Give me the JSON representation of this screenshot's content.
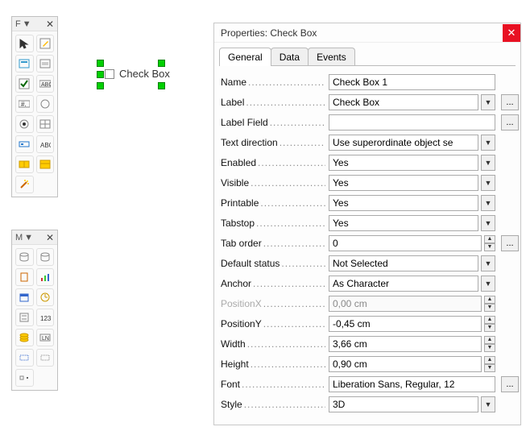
{
  "toolbars": {
    "form_controls": {
      "letter": "F",
      "items": [
        {
          "name": "select-tool",
          "glyph": "cursor",
          "active": false
        },
        {
          "name": "design-mode",
          "glyph": "pencil",
          "active": true
        },
        {
          "name": "form-control-1",
          "glyph": "box1",
          "active": false
        },
        {
          "name": "form-control-2",
          "glyph": "box2",
          "active": false
        },
        {
          "name": "checkbox-tool",
          "glyph": "check",
          "active": true
        },
        {
          "name": "label-tool",
          "glyph": "abc",
          "active": false
        },
        {
          "name": "numeric-tool",
          "glyph": "hash",
          "active": false
        },
        {
          "name": "circle-tool",
          "glyph": "circle",
          "active": false
        },
        {
          "name": "radio-tool",
          "glyph": "radio",
          "active": false
        },
        {
          "name": "grid-tool",
          "glyph": "grid",
          "active": false
        },
        {
          "name": "nav-tool",
          "glyph": "nav",
          "active": false
        },
        {
          "name": "text-tool",
          "glyph": "abc2",
          "active": false
        },
        {
          "name": "group-tool",
          "glyph": "group",
          "active": true
        },
        {
          "name": "table-tool",
          "glyph": "table",
          "active": true
        },
        {
          "name": "wizard-tool",
          "glyph": "wand",
          "active": false
        }
      ]
    },
    "more_controls": {
      "letter": "M",
      "items": [
        {
          "name": "m1",
          "glyph": "db1"
        },
        {
          "name": "m2",
          "glyph": "db2"
        },
        {
          "name": "m3",
          "glyph": "doc"
        },
        {
          "name": "m4",
          "glyph": "chart"
        },
        {
          "name": "m5",
          "glyph": "cal"
        },
        {
          "name": "m6",
          "glyph": "clock"
        },
        {
          "name": "m7",
          "glyph": "list"
        },
        {
          "name": "m8",
          "glyph": "123"
        },
        {
          "name": "m9",
          "glyph": "coins"
        },
        {
          "name": "m10",
          "glyph": "ln"
        },
        {
          "name": "m11",
          "glyph": "rect"
        },
        {
          "name": "m12",
          "glyph": "rect2"
        },
        {
          "name": "m13",
          "glyph": "dot"
        }
      ]
    }
  },
  "canvas": {
    "checkbox_label": "Check Box"
  },
  "panel": {
    "title": "Properties: Check Box",
    "tabs": [
      {
        "id": "general",
        "label": "General",
        "active": true
      },
      {
        "id": "data",
        "label": "Data",
        "active": false
      },
      {
        "id": "events",
        "label": "Events",
        "active": false
      }
    ],
    "rows": [
      {
        "label": "Name",
        "value": "Check Box 1",
        "type": "text"
      },
      {
        "label": "Label",
        "value": "Check Box",
        "type": "combo-more"
      },
      {
        "label": "Label Field",
        "value": "",
        "type": "text-more"
      },
      {
        "label": "Text direction",
        "value": "Use superordinate object se",
        "type": "combo"
      },
      {
        "label": "Enabled",
        "value": "Yes",
        "type": "combo"
      },
      {
        "label": "Visible",
        "value": "Yes",
        "type": "combo"
      },
      {
        "label": "Printable",
        "value": "Yes",
        "type": "combo"
      },
      {
        "label": "Tabstop",
        "value": "Yes",
        "type": "combo"
      },
      {
        "label": "Tab order",
        "value": "0",
        "type": "spin-more"
      },
      {
        "label": "Default status",
        "value": "Not Selected",
        "type": "combo"
      },
      {
        "label": "Anchor",
        "value": "As Character",
        "type": "combo"
      },
      {
        "label": "PositionX",
        "value": "0,00 cm",
        "type": "spin",
        "disabled": true
      },
      {
        "label": "PositionY",
        "value": "-0,45 cm",
        "type": "spin"
      },
      {
        "label": "Width",
        "value": "3,66 cm",
        "type": "spin"
      },
      {
        "label": "Height",
        "value": "0,90 cm",
        "type": "spin"
      },
      {
        "label": "Font",
        "value": "Liberation Sans, Regular, 12",
        "type": "text-more"
      },
      {
        "label": "Style",
        "value": "3D",
        "type": "combo"
      }
    ]
  }
}
